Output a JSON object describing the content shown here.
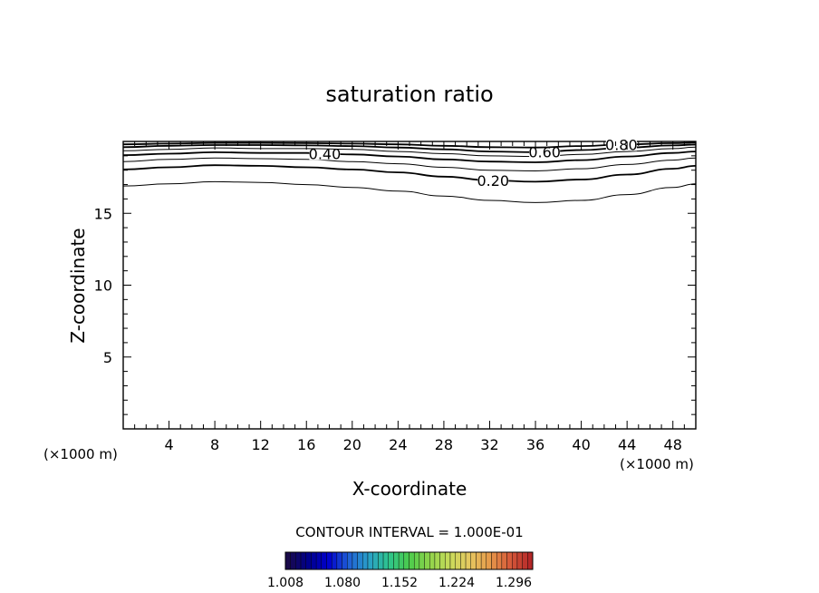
{
  "chart_data": {
    "type": "contour",
    "title": "saturation ratio",
    "xlabel": "X-coordinate",
    "ylabel": "Z-coordinate",
    "x_unit_left": "(×1000 m)",
    "x_unit_right": "(×1000 m)",
    "xlim": [
      0,
      50
    ],
    "ylim": [
      0,
      20
    ],
    "x_ticks": [
      "4",
      "8",
      "12",
      "16",
      "20",
      "24",
      "28",
      "32",
      "36",
      "40",
      "44",
      "48"
    ],
    "y_ticks": [
      "5",
      "10",
      "15"
    ],
    "contours": [
      {
        "level": 0.1,
        "label": "",
        "points": [
          [
            0,
            16.9
          ],
          [
            4,
            17.05
          ],
          [
            8,
            17.2
          ],
          [
            12,
            17.15
          ],
          [
            16,
            17.0
          ],
          [
            20,
            16.8
          ],
          [
            24,
            16.55
          ],
          [
            28,
            16.2
          ],
          [
            32,
            15.9
          ],
          [
            36,
            15.75
          ],
          [
            40,
            15.9
          ],
          [
            44,
            16.3
          ],
          [
            48,
            16.8
          ],
          [
            50,
            17.05
          ]
        ]
      },
      {
        "level": 0.2,
        "label": "0.20",
        "label_x": 32.3,
        "points": [
          [
            0,
            18.05
          ],
          [
            4,
            18.2
          ],
          [
            8,
            18.35
          ],
          [
            12,
            18.3
          ],
          [
            16,
            18.2
          ],
          [
            20,
            18.05
          ],
          [
            24,
            17.85
          ],
          [
            28,
            17.55
          ],
          [
            32,
            17.3
          ],
          [
            36,
            17.2
          ],
          [
            40,
            17.35
          ],
          [
            44,
            17.7
          ],
          [
            48,
            18.1
          ],
          [
            50,
            18.3
          ]
        ]
      },
      {
        "level": 0.3,
        "label": "",
        "points": [
          [
            0,
            18.6
          ],
          [
            4,
            18.75
          ],
          [
            8,
            18.85
          ],
          [
            12,
            18.8
          ],
          [
            16,
            18.75
          ],
          [
            20,
            18.6
          ],
          [
            24,
            18.45
          ],
          [
            28,
            18.2
          ],
          [
            32,
            18.0
          ],
          [
            36,
            17.95
          ],
          [
            40,
            18.1
          ],
          [
            44,
            18.4
          ],
          [
            48,
            18.7
          ],
          [
            50,
            18.85
          ]
        ]
      },
      {
        "level": 0.4,
        "label": "0.40",
        "label_x": 17.6,
        "points": [
          [
            0,
            19.05
          ],
          [
            4,
            19.15
          ],
          [
            8,
            19.25
          ],
          [
            12,
            19.2
          ],
          [
            16,
            19.2
          ],
          [
            20,
            19.1
          ],
          [
            24,
            18.95
          ],
          [
            28,
            18.75
          ],
          [
            32,
            18.6
          ],
          [
            36,
            18.55
          ],
          [
            40,
            18.7
          ],
          [
            44,
            18.95
          ],
          [
            48,
            19.2
          ],
          [
            50,
            19.3
          ]
        ]
      },
      {
        "level": 0.5,
        "label": "",
        "points": [
          [
            0,
            19.35
          ],
          [
            4,
            19.45
          ],
          [
            8,
            19.55
          ],
          [
            12,
            19.5
          ],
          [
            16,
            19.5
          ],
          [
            20,
            19.45
          ],
          [
            24,
            19.3
          ],
          [
            28,
            19.15
          ],
          [
            32,
            19.0
          ],
          [
            36,
            18.95
          ],
          [
            40,
            19.1
          ],
          [
            44,
            19.3
          ],
          [
            48,
            19.5
          ],
          [
            50,
            19.6
          ]
        ]
      },
      {
        "level": 0.6,
        "label": "0.60",
        "label_x": 36.8,
        "points": [
          [
            0,
            19.6
          ],
          [
            4,
            19.7
          ],
          [
            8,
            19.75
          ],
          [
            12,
            19.75
          ],
          [
            16,
            19.72
          ],
          [
            20,
            19.68
          ],
          [
            24,
            19.58
          ],
          [
            28,
            19.45
          ],
          [
            32,
            19.3
          ],
          [
            36,
            19.25
          ],
          [
            40,
            19.4
          ],
          [
            44,
            19.58
          ],
          [
            48,
            19.72
          ],
          [
            50,
            19.78
          ]
        ]
      },
      {
        "level": 0.8,
        "label": "0.80",
        "label_x": 43.5,
        "points": [
          [
            0,
            19.8
          ],
          [
            4,
            19.85
          ],
          [
            8,
            19.9
          ],
          [
            12,
            19.9
          ],
          [
            16,
            19.88
          ],
          [
            20,
            19.85
          ],
          [
            24,
            19.8
          ],
          [
            28,
            19.7
          ],
          [
            32,
            19.6
          ],
          [
            36,
            19.58
          ],
          [
            40,
            19.68
          ],
          [
            44,
            19.8
          ],
          [
            48,
            19.88
          ],
          [
            50,
            19.92
          ]
        ]
      }
    ],
    "colorbar": {
      "caption": "CONTOUR INTERVAL = 1.000E-01",
      "tick_labels": [
        "1.008",
        "1.080",
        "1.152",
        "1.224",
        "1.296"
      ],
      "range": [
        1.008,
        1.32
      ],
      "colors": [
        "#1a0a4a",
        "#00008b",
        "#0000cd",
        "#1f5fd6",
        "#2aa0c8",
        "#2ec48c",
        "#4ccc4c",
        "#8ed44a",
        "#c8dc5a",
        "#e6c860",
        "#e69a4a",
        "#d65a3a",
        "#b42828"
      ]
    }
  }
}
